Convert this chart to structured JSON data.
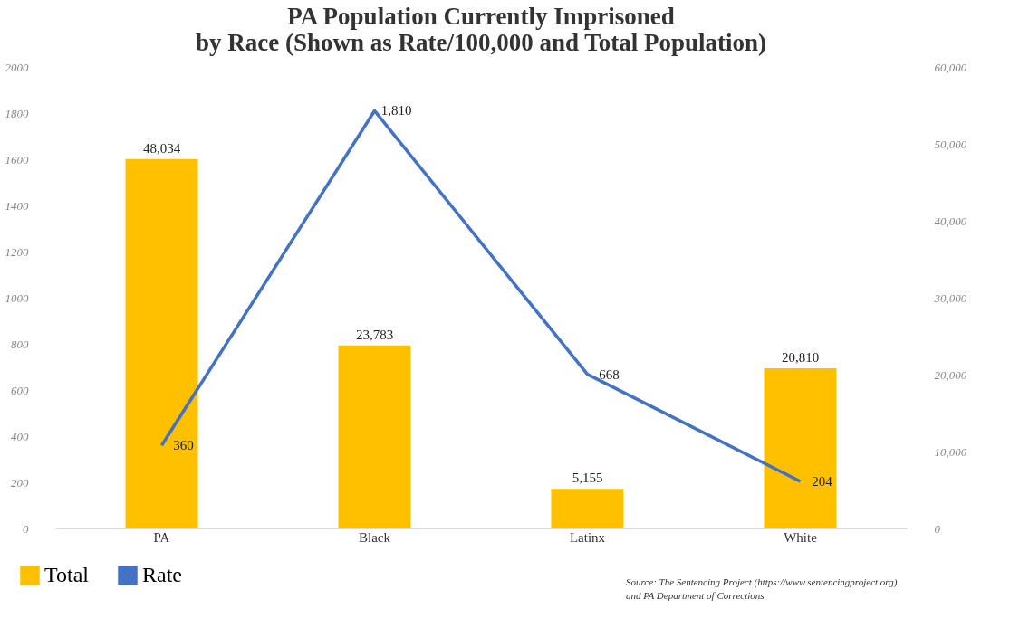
{
  "chart_data": {
    "type": "bar",
    "title": "PA Population Currently Imprisoned by Race (Shown as Rate/100,000 and Total Population)",
    "categories": [
      "PA",
      "Black",
      "Latinx",
      "White"
    ],
    "series": [
      {
        "name": "Total",
        "axis": "y2",
        "color": "#ffc000",
        "values": [
          48034,
          23783,
          5155,
          20810
        ],
        "value_labels": [
          "48,034",
          "23,783",
          "5,155",
          "20,810"
        ]
      },
      {
        "name": "Rate",
        "type": "line",
        "axis": "y",
        "color": "#4472c4",
        "values": [
          360,
          1810,
          668,
          204
        ],
        "value_labels": [
          "360",
          "1,810",
          "668",
          "204"
        ]
      }
    ],
    "ylim": [
      0,
      2000
    ],
    "yticks": [
      0,
      200,
      400,
      600,
      800,
      1000,
      1200,
      1400,
      1600,
      1800,
      2000
    ],
    "y2lim": [
      0,
      60000
    ],
    "y2ticks": [
      0,
      {
        "value": 10000,
        "label": "10,000"
      },
      {
        "value": 20000,
        "label": "20,000"
      },
      {
        "value": 30000,
        "label": "30,000"
      },
      {
        "value": 40000,
        "label": "40,000"
      },
      {
        "value": 50000,
        "label": "50,000"
      },
      {
        "value": 60000,
        "label": "60,000"
      }
    ],
    "grid": false,
    "legend": "bottom left",
    "marker": "none",
    "line_style": "solid",
    "annotations": [
      "Source: The Sentencing Project (https://www.sentencingproject.org)",
      "and PA Department of Corrections"
    ]
  }
}
